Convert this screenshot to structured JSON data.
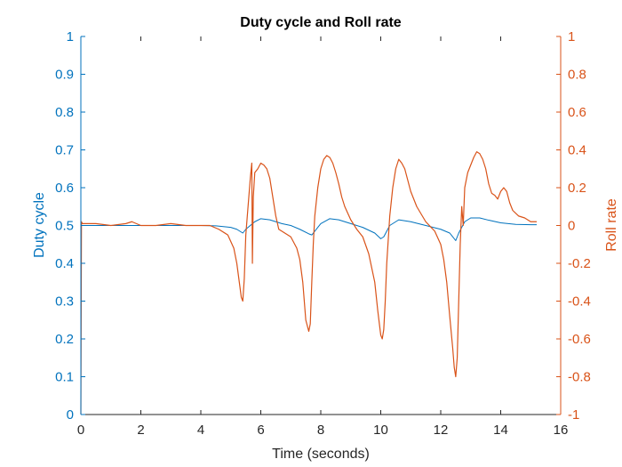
{
  "chart_data": {
    "type": "line",
    "title": "Duty cycle and Roll rate",
    "xlabel": "Time (seconds)",
    "ylabel_left": "Duty cycle",
    "ylabel_right": "Roll rate",
    "xlim": [
      0,
      16
    ],
    "ylim_left": [
      0,
      1
    ],
    "ylim_right": [
      -1,
      1
    ],
    "grid": false,
    "x_ticks": [
      "0",
      "2",
      "4",
      "6",
      "8",
      "10",
      "12",
      "14",
      "16"
    ],
    "y_left_ticks": [
      "0",
      "0.1",
      "0.2",
      "0.3",
      "0.4",
      "0.5",
      "0.6",
      "0.7",
      "0.8",
      "0.9",
      "1"
    ],
    "y_right_ticks": [
      "-1",
      "-0.8",
      "-0.6",
      "-0.4",
      "-0.2",
      "0",
      "0.2",
      "0.4",
      "0.6",
      "0.8",
      "1"
    ],
    "colors": {
      "left": "#0072BD",
      "right": "#D95319",
      "axis": "#262626"
    },
    "series": [
      {
        "axis": "left",
        "color": "#0072BD",
        "x": [
          0.0,
          0.5,
          1.0,
          1.5,
          2.0,
          2.5,
          3.0,
          3.5,
          4.0,
          4.5,
          5.0,
          5.2,
          5.4,
          5.5,
          5.8,
          6.0,
          6.3,
          6.7,
          7.0,
          7.3,
          7.6,
          7.7,
          7.8,
          8.0,
          8.3,
          8.6,
          9.0,
          9.4,
          9.8,
          10.0,
          10.1,
          10.3,
          10.6,
          11.0,
          11.5,
          12.0,
          12.3,
          12.5,
          12.6,
          12.8,
          13.0,
          13.3,
          13.6,
          14.0,
          14.5,
          15.0,
          15.2
        ],
        "y": [
          0.5,
          0.5,
          0.5,
          0.5,
          0.5,
          0.5,
          0.5,
          0.5,
          0.5,
          0.499,
          0.495,
          0.49,
          0.48,
          0.49,
          0.51,
          0.518,
          0.515,
          0.505,
          0.5,
          0.49,
          0.478,
          0.475,
          0.485,
          0.505,
          0.518,
          0.515,
          0.505,
          0.495,
          0.48,
          0.465,
          0.47,
          0.5,
          0.515,
          0.51,
          0.5,
          0.49,
          0.48,
          0.46,
          0.48,
          0.51,
          0.52,
          0.52,
          0.514,
          0.507,
          0.503,
          0.502,
          0.502
        ]
      },
      {
        "axis": "right",
        "color": "#D95319",
        "x": [
          0.0,
          0.02,
          0.05,
          0.5,
          1.0,
          1.5,
          1.7,
          2.0,
          2.5,
          3.0,
          3.5,
          4.0,
          4.3,
          4.6,
          4.9,
          5.1,
          5.2,
          5.3,
          5.35,
          5.4,
          5.45,
          5.5,
          5.55,
          5.6,
          5.65,
          5.7,
          5.72,
          5.75,
          5.8,
          5.9,
          6.0,
          6.1,
          6.2,
          6.3,
          6.4,
          6.5,
          6.6,
          6.7,
          6.8,
          7.0,
          7.2,
          7.3,
          7.4,
          7.5,
          7.6,
          7.65,
          7.7,
          7.75,
          7.8,
          7.9,
          8.0,
          8.1,
          8.2,
          8.3,
          8.4,
          8.5,
          8.6,
          8.7,
          8.8,
          9.0,
          9.2,
          9.4,
          9.6,
          9.8,
          9.9,
          10.0,
          10.05,
          10.1,
          10.15,
          10.2,
          10.3,
          10.4,
          10.5,
          10.6,
          10.7,
          10.8,
          11.0,
          11.2,
          11.5,
          11.8,
          12.0,
          12.1,
          12.2,
          12.3,
          12.4,
          12.45,
          12.5,
          12.55,
          12.6,
          12.65,
          12.7,
          12.75,
          12.8,
          12.9,
          13.0,
          13.1,
          13.2,
          13.3,
          13.4,
          13.5,
          13.6,
          13.7,
          13.8,
          13.9,
          14.0,
          14.1,
          14.2,
          14.3,
          14.4,
          14.6,
          14.8,
          15.0,
          15.2
        ],
        "y": [
          -1.0,
          0.02,
          0.01,
          0.01,
          0.0,
          0.01,
          0.02,
          0.0,
          0.0,
          0.01,
          0.0,
          0.0,
          0.0,
          -0.02,
          -0.05,
          -0.12,
          -0.2,
          -0.32,
          -0.38,
          -0.4,
          -0.28,
          -0.05,
          0.05,
          0.15,
          0.25,
          0.33,
          -0.2,
          0.15,
          0.28,
          0.3,
          0.33,
          0.32,
          0.3,
          0.25,
          0.15,
          0.05,
          -0.02,
          -0.03,
          -0.04,
          -0.06,
          -0.12,
          -0.18,
          -0.3,
          -0.5,
          -0.56,
          -0.52,
          -0.3,
          -0.1,
          0.05,
          0.2,
          0.3,
          0.35,
          0.37,
          0.36,
          0.33,
          0.28,
          0.22,
          0.15,
          0.1,
          0.03,
          -0.02,
          -0.06,
          -0.15,
          -0.3,
          -0.45,
          -0.58,
          -0.6,
          -0.55,
          -0.4,
          -0.2,
          0.05,
          0.2,
          0.3,
          0.35,
          0.33,
          0.3,
          0.18,
          0.1,
          0.02,
          -0.03,
          -0.1,
          -0.18,
          -0.3,
          -0.48,
          -0.65,
          -0.75,
          -0.8,
          -0.7,
          -0.4,
          -0.1,
          0.1,
          0.0,
          0.2,
          0.28,
          0.32,
          0.36,
          0.39,
          0.38,
          0.35,
          0.3,
          0.22,
          0.17,
          0.16,
          0.14,
          0.18,
          0.2,
          0.18,
          0.12,
          0.08,
          0.05,
          0.04,
          0.02,
          0.02
        ]
      }
    ]
  }
}
